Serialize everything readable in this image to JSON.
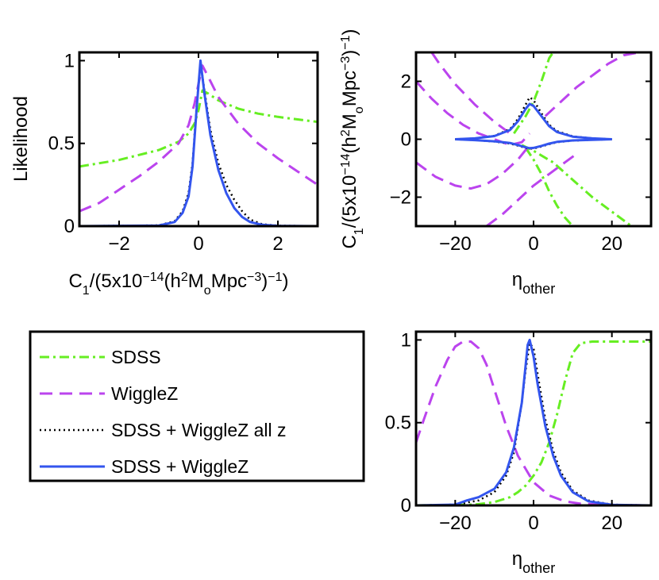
{
  "colors": {
    "sdss": "#66ee22",
    "wigglez": "#bb44ee",
    "allz": "#000000",
    "combined": "#3355ee",
    "axes": "#000000"
  },
  "legend": {
    "entries": [
      {
        "key": "sdss",
        "label": "SDSS",
        "style": "dashdot"
      },
      {
        "key": "wigglez",
        "label": "WiggleZ",
        "style": "dashed"
      },
      {
        "key": "allz",
        "label": "SDSS + WiggleZ all z",
        "style": "dotted"
      },
      {
        "key": "combined",
        "label": "SDSS + WiggleZ",
        "style": "solid"
      }
    ]
  },
  "chart_data": [
    {
      "id": "top-left",
      "type": "line",
      "title": "",
      "xlabel": "C_1/(5x10^-14(h^2M_oMpc^-3)^-1)",
      "ylabel": "Likelihood",
      "xlim": [
        -3,
        3
      ],
      "ylim": [
        0,
        1.05
      ],
      "xticks": [
        -2,
        0,
        2
      ],
      "xtick_labels": [
        "−2",
        "0",
        "2"
      ],
      "yticks": [
        0,
        0.5,
        1
      ],
      "ytick_labels": [
        "0",
        "0.5",
        "1"
      ],
      "series": [
        {
          "key": "sdss",
          "name": "SDSS",
          "x": [
            -3,
            -2.5,
            -2,
            -1.5,
            -1,
            -0.5,
            -0.25,
            -0.1,
            0,
            0.1,
            0.25,
            0.5,
            1,
            1.5,
            2,
            2.5,
            3
          ],
          "y": [
            0.36,
            0.38,
            0.4,
            0.43,
            0.46,
            0.51,
            0.56,
            0.62,
            0.7,
            0.82,
            0.8,
            0.76,
            0.71,
            0.68,
            0.66,
            0.645,
            0.63
          ]
        },
        {
          "key": "wigglez",
          "name": "WiggleZ",
          "x": [
            -3,
            -2.5,
            -2,
            -1.5,
            -1,
            -0.5,
            -0.25,
            -0.1,
            0,
            0.1,
            0.25,
            0.5,
            1,
            1.5,
            2,
            2.5,
            3
          ],
          "y": [
            0.09,
            0.14,
            0.22,
            0.3,
            0.39,
            0.5,
            0.61,
            0.74,
            0.86,
            0.97,
            0.9,
            0.78,
            0.62,
            0.5,
            0.41,
            0.33,
            0.25
          ]
        },
        {
          "key": "allz",
          "name": "SDSS + WiggleZ all z",
          "x": [
            -3,
            -1,
            -0.6,
            -0.4,
            -0.25,
            -0.15,
            -0.05,
            0.05,
            0.15,
            0.3,
            0.5,
            0.7,
            0.9,
            1.1,
            1.3,
            1.6,
            2,
            3
          ],
          "y": [
            0,
            0.005,
            0.03,
            0.09,
            0.2,
            0.38,
            0.72,
            0.99,
            0.82,
            0.58,
            0.38,
            0.25,
            0.16,
            0.09,
            0.04,
            0.012,
            0.003,
            0
          ]
        },
        {
          "key": "combined",
          "name": "SDSS + WiggleZ",
          "x": [
            -3,
            -1,
            -0.6,
            -0.4,
            -0.25,
            -0.15,
            -0.05,
            0.05,
            0.15,
            0.3,
            0.5,
            0.7,
            0.9,
            1.1,
            1.3,
            1.6,
            2,
            3
          ],
          "y": [
            0,
            0.004,
            0.025,
            0.08,
            0.18,
            0.36,
            0.7,
            1.0,
            0.8,
            0.55,
            0.34,
            0.2,
            0.11,
            0.055,
            0.025,
            0.008,
            0.002,
            0
          ]
        }
      ]
    },
    {
      "id": "top-right",
      "type": "line",
      "title": "",
      "xlabel": "η_other",
      "ylabel": "C_1/(5x10^-14(h^2M_oMpc^-3)^-1)",
      "xlim": [
        -30,
        30
      ],
      "ylim": [
        -3,
        3
      ],
      "xticks": [
        -20,
        0,
        20
      ],
      "xtick_labels": [
        "−20",
        "0",
        "20"
      ],
      "yticks": [
        -2,
        0,
        2
      ],
      "ytick_labels": [
        "−2",
        "0",
        "2"
      ],
      "series": [
        {
          "key": "sdss",
          "name": "SDSS upper",
          "x": [
            -5,
            -2,
            0,
            2,
            4,
            5
          ],
          "y": [
            0.2,
            0.8,
            1.3,
            2.0,
            2.8,
            3.0
          ]
        },
        {
          "key": "sdss",
          "name": "SDSS lower",
          "x": [
            -3,
            0,
            5,
            10,
            15,
            20,
            25
          ],
          "y": [
            -0.2,
            -0.4,
            -0.8,
            -1.4,
            -2.0,
            -2.5,
            -3.0
          ]
        },
        {
          "key": "sdss",
          "name": "SDSS lower 2",
          "x": [
            -2,
            0,
            2,
            4,
            6,
            8,
            10
          ],
          "y": [
            -0.3,
            -0.7,
            -1.2,
            -1.8,
            -2.3,
            -2.7,
            -3.0
          ]
        },
        {
          "key": "wigglez",
          "name": "WiggleZ upper",
          "x": [
            -30,
            -26,
            -22,
            -18,
            -14,
            -10,
            -6,
            -3,
            -1
          ],
          "y": [
            2.0,
            1.4,
            0.9,
            0.5,
            0.2,
            0.0,
            -0.2,
            -0.1,
            0.2
          ]
        },
        {
          "key": "wigglez",
          "name": "WiggleZ upper 2",
          "x": [
            -26,
            -24,
            -20,
            -15,
            -10,
            -5
          ],
          "y": [
            3.0,
            2.6,
            1.9,
            1.2,
            0.6,
            0.1
          ]
        },
        {
          "key": "wigglez",
          "name": "WiggleZ lower",
          "x": [
            -30,
            -25,
            -20,
            -16,
            -12,
            -8,
            -4,
            -1
          ],
          "y": [
            -0.8,
            -1.3,
            -1.6,
            -1.7,
            -1.55,
            -1.2,
            -0.7,
            -0.2
          ]
        },
        {
          "key": "wigglez",
          "name": "WiggleZ right",
          "x": [
            3,
            7,
            11,
            15,
            19,
            23,
            27,
            30
          ],
          "y": [
            0.8,
            1.3,
            1.8,
            2.2,
            2.6,
            2.9,
            3.0,
            3.0
          ]
        },
        {
          "key": "wigglez",
          "name": "WiggleZ lower right",
          "x": [
            -12,
            -8,
            -4,
            0,
            4,
            8,
            11
          ],
          "y": [
            -3.0,
            -2.6,
            -2.1,
            -1.6,
            -1.2,
            -0.8,
            -0.5
          ]
        },
        {
          "key": "allz",
          "name": "all z contour upper",
          "x": [
            -20,
            -15,
            -10,
            -6,
            -4,
            -2,
            -1,
            0,
            2,
            4,
            6,
            10,
            15,
            20
          ],
          "y": [
            0,
            0.03,
            0.12,
            0.35,
            0.7,
            1.2,
            1.45,
            1.35,
            0.9,
            0.5,
            0.28,
            0.1,
            0.03,
            0
          ]
        },
        {
          "key": "allz",
          "name": "all z contour lower",
          "x": [
            -20,
            -15,
            -10,
            -6,
            -4,
            -2,
            -1,
            0,
            2,
            4,
            6,
            10,
            15,
            20
          ],
          "y": [
            0,
            -0.03,
            -0.08,
            -0.15,
            -0.22,
            -0.3,
            -0.33,
            -0.32,
            -0.25,
            -0.17,
            -0.1,
            -0.05,
            -0.02,
            0
          ]
        },
        {
          "key": "combined",
          "name": "combined contour upper",
          "x": [
            -20,
            -15,
            -10,
            -6,
            -4,
            -2,
            -1,
            0,
            2,
            4,
            6,
            10,
            15,
            20
          ],
          "y": [
            0,
            0.03,
            0.11,
            0.32,
            0.62,
            1.05,
            1.22,
            1.15,
            0.8,
            0.45,
            0.25,
            0.09,
            0.03,
            0
          ]
        },
        {
          "key": "combined",
          "name": "combined contour lower",
          "x": [
            -20,
            -15,
            -10,
            -6,
            -4,
            -2,
            -1,
            0,
            2,
            4,
            6,
            10,
            15,
            20
          ],
          "y": [
            0,
            -0.03,
            -0.07,
            -0.13,
            -0.2,
            -0.28,
            -0.31,
            -0.3,
            -0.23,
            -0.15,
            -0.09,
            -0.04,
            -0.02,
            0
          ]
        }
      ]
    },
    {
      "id": "bottom-right",
      "type": "line",
      "title": "",
      "xlabel": "η_other",
      "ylabel": "",
      "xlim": [
        -30,
        30
      ],
      "ylim": [
        0,
        1.05
      ],
      "xticks": [
        -20,
        0,
        20
      ],
      "xtick_labels": [
        "−20",
        "0",
        "20"
      ],
      "yticks": [
        0,
        0.5,
        1
      ],
      "ytick_labels": [
        "0",
        "0.5",
        "1"
      ],
      "series": [
        {
          "key": "sdss",
          "name": "SDSS",
          "x": [
            -30,
            -15,
            -10,
            -6,
            -4,
            -2,
            0,
            2,
            4,
            6,
            8,
            10,
            12,
            15,
            20,
            30
          ],
          "y": [
            0,
            0.005,
            0.02,
            0.05,
            0.08,
            0.12,
            0.18,
            0.26,
            0.38,
            0.55,
            0.75,
            0.92,
            0.98,
            0.99,
            0.99,
            0.99
          ]
        },
        {
          "key": "wigglez",
          "name": "WiggleZ",
          "x": [
            -30,
            -28,
            -25,
            -22,
            -20,
            -18,
            -16,
            -14,
            -12,
            -10,
            -7,
            -4,
            0,
            4,
            8,
            12,
            20,
            30
          ],
          "y": [
            0.38,
            0.52,
            0.72,
            0.88,
            0.96,
            0.99,
            0.99,
            0.95,
            0.85,
            0.7,
            0.48,
            0.3,
            0.14,
            0.06,
            0.025,
            0.01,
            0.002,
            0
          ]
        },
        {
          "key": "allz",
          "name": "SDSS + WiggleZ all z",
          "x": [
            -30,
            -20,
            -14,
            -10,
            -7,
            -5,
            -3,
            -2,
            -1,
            0,
            1,
            3,
            5,
            7,
            10,
            14,
            20,
            30
          ],
          "y": [
            0,
            0.005,
            0.03,
            0.08,
            0.18,
            0.32,
            0.62,
            0.82,
            0.98,
            0.95,
            0.8,
            0.52,
            0.33,
            0.2,
            0.09,
            0.03,
            0.005,
            0
          ]
        },
        {
          "key": "combined",
          "name": "SDSS + WiggleZ",
          "x": [
            -30,
            -20,
            -17,
            -14,
            -10,
            -7,
            -5,
            -3,
            -2,
            -1.5,
            -1,
            0,
            1,
            3,
            5,
            7,
            10,
            14,
            20,
            30
          ],
          "y": [
            0,
            0.005,
            0.03,
            0.05,
            0.1,
            0.2,
            0.35,
            0.62,
            0.85,
            0.97,
            1.0,
            0.9,
            0.74,
            0.48,
            0.3,
            0.18,
            0.08,
            0.025,
            0.004,
            0
          ]
        }
      ]
    }
  ]
}
